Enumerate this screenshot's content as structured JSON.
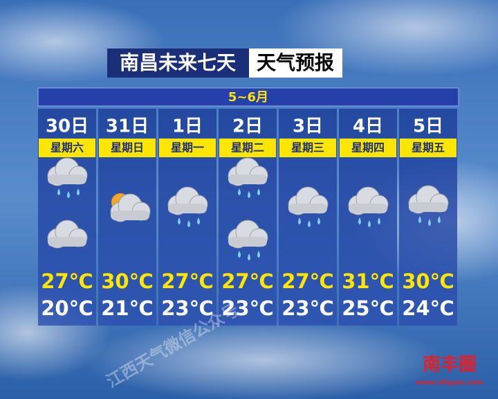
{
  "header": {
    "title_left": "南昌未来七天",
    "title_right": "天气预报",
    "month": "5~6月"
  },
  "days": [
    {
      "date": "30日",
      "weekday": "星期六",
      "high": "27℃",
      "low": "20℃"
    },
    {
      "date": "31日",
      "weekday": "星期日",
      "high": "30℃",
      "low": "21℃"
    },
    {
      "date": "1日",
      "weekday": "星期一",
      "high": "27℃",
      "low": "23℃"
    },
    {
      "date": "2日",
      "weekday": "星期二",
      "high": "27℃",
      "low": "23℃"
    },
    {
      "date": "3日",
      "weekday": "星期三",
      "high": "27℃",
      "low": "23℃"
    },
    {
      "date": "4日",
      "weekday": "星期四",
      "high": "31℃",
      "low": "25℃"
    },
    {
      "date": "5日",
      "weekday": "星期五",
      "high": "30℃",
      "low": "24℃"
    }
  ],
  "watermark": {
    "text": "江西天气微信公众号",
    "logo": "南丰圈",
    "url": "www.nfquan.com"
  }
}
